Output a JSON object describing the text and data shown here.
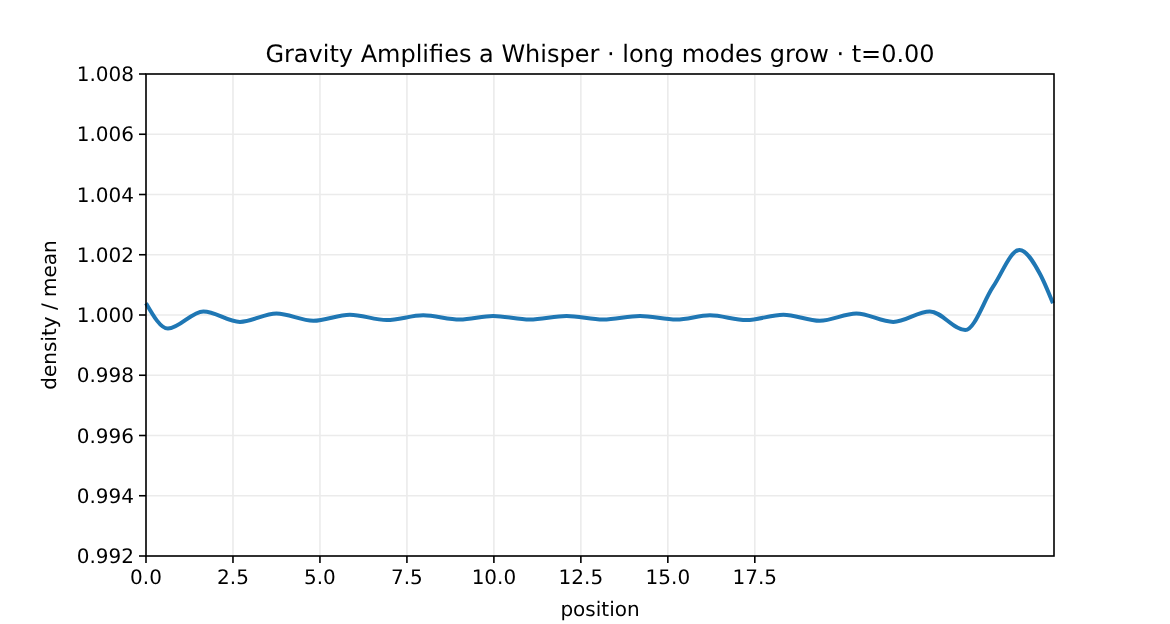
{
  "chart_data": {
    "type": "line",
    "title": "Gravity Amplifies a Whisper · long modes grow · t=0.00",
    "xlabel": "position",
    "ylabel": "density / mean",
    "x": [
      0,
      0.63,
      1.65,
      2.7,
      3.75,
      4.81,
      5.86,
      6.92,
      7.97,
      9.02,
      9.98,
      11.03,
      12.09,
      13.14,
      14.2,
      15.25,
      16.21,
      17.26,
      18.32,
      19.37,
      20.42,
      21.48,
      22.53,
      23.55,
      24.35,
      25.11,
      25.69,
      26.07
    ],
    "series": [
      {
        "color": "#1f77b4",
        "values": [
          1.00039,
          0.99955,
          1.00012,
          0.99977,
          1.00005,
          0.99981,
          1.00001,
          0.99983,
          0.99999,
          0.99985,
          0.99997,
          0.99985,
          0.99997,
          0.99985,
          0.99997,
          0.99985,
          0.99999,
          0.99983,
          1.00001,
          0.99981,
          1.00005,
          0.99977,
          1.00012,
          0.9995,
          1.00094,
          1.00216,
          1.00138,
          1.00039
        ]
      }
    ],
    "xlim": [
      0,
      26.1
    ],
    "xticks": [
      {
        "value": 0,
        "label": "0.0"
      },
      {
        "value": 2.5,
        "label": "2.5"
      },
      {
        "value": 5,
        "label": "5.0"
      },
      {
        "value": 7.5,
        "label": "7.5"
      },
      {
        "value": 10,
        "label": "10.0"
      },
      {
        "value": 12.5,
        "label": "12.5"
      },
      {
        "value": 15,
        "label": "15.0"
      },
      {
        "value": 17.5,
        "label": "17.5"
      }
    ],
    "ylim": [
      0.992,
      1.008
    ],
    "yticks": [
      {
        "value": 0.992,
        "label": "0.992"
      },
      {
        "value": 0.994,
        "label": "0.994"
      },
      {
        "value": 0.996,
        "label": "0.996"
      },
      {
        "value": 0.998,
        "label": "0.998"
      },
      {
        "value": 1,
        "label": "1.000"
      },
      {
        "value": 1.002,
        "label": "1.002"
      },
      {
        "value": 1.004,
        "label": "1.004"
      },
      {
        "value": 1.006,
        "label": "1.006"
      },
      {
        "value": 1.008,
        "label": "1.008"
      }
    ],
    "grid": true,
    "line_style": "solid",
    "marker": "none"
  }
}
